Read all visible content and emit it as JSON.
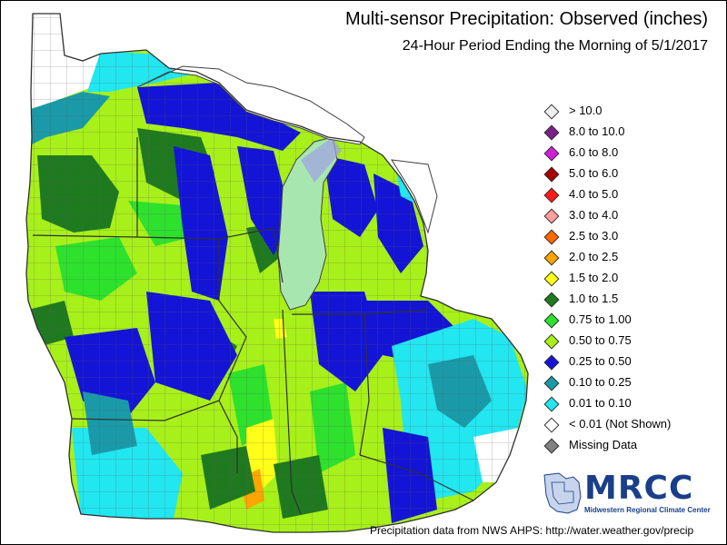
{
  "map": {
    "title": "Multi-sensor Precipitation:  Observed (inches)",
    "subtitle": "24-Hour Period Ending the Morning of 5/1/2017",
    "credit": "Precipitation data from NWS AHPS: http://water.weather.gov/precip",
    "logo": {
      "name": "MRCC",
      "subtitle": "Midwestern Regional Climate Center"
    }
  },
  "legend": {
    "items": [
      {
        "label": "> 10.0",
        "color": "#f0f0f0"
      },
      {
        "label": "8.0 to 10.0",
        "color": "#7a1f8a"
      },
      {
        "label": "6.0 to 8.0",
        "color": "#d21fd6"
      },
      {
        "label": "5.0 to 6.0",
        "color": "#a80000"
      },
      {
        "label": "4.0 to 5.0",
        "color": "#ff1a1a"
      },
      {
        "label": "3.0 to 4.0",
        "color": "#ff9f9f"
      },
      {
        "label": "2.5 to 3.0",
        "color": "#ff6a00"
      },
      {
        "label": "2.0 to 2.5",
        "color": "#ffa500"
      },
      {
        "label": "1.5 to 2.0",
        "color": "#ffff1a"
      },
      {
        "label": "1.0 to 1.5",
        "color": "#1f7a1f"
      },
      {
        "label": "0.75 to 1.00",
        "color": "#2de12d"
      },
      {
        "label": "0.50 to 0.75",
        "color": "#a8f01a"
      },
      {
        "label": "0.25 to 0.50",
        "color": "#1414d6"
      },
      {
        "label": "0.10 to 0.25",
        "color": "#1a9aa8"
      },
      {
        "label": "0.01 to 0.10",
        "color": "#22e6f0"
      },
      {
        "label": "< 0.01 (Not Shown)",
        "color": "#ffffff"
      },
      {
        "label": "Missing Data",
        "color": "#808080"
      }
    ]
  },
  "colors": {
    "lake_michigan": "#a8e6b0",
    "lake_superior_land": "#ffffff",
    "border": "#404040"
  }
}
